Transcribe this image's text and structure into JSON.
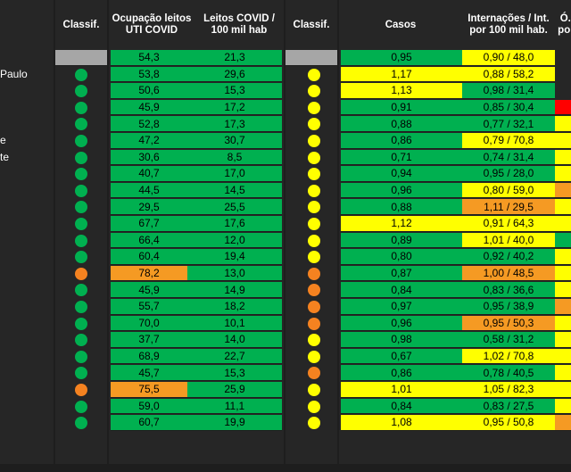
{
  "headers": {
    "classif1": "Classif.",
    "ocupacao": "Ocupação leitos UTI COVID",
    "leitos": "Leitos COVID / 100 mil hab",
    "classif2": "Classif.",
    "casos": "Casos",
    "internacoes": "Internações / Int. por 100 mil hab.",
    "obitos": "Ó... po..."
  },
  "colors": {
    "green": "#00b050",
    "yellow": "#ffff00",
    "orange": "#f59a23",
    "red": "#ff0000",
    "gray": "#a6a6a6"
  },
  "rows": [
    {
      "name": "",
      "class1": "none",
      "ocup": "54,3",
      "ocup_color": "g",
      "leitos": "21,3",
      "class2": "none",
      "casos": "0,95",
      "casos_color": "g",
      "int": "0,90 / 48,0",
      "int_color": "y",
      "edge": "none",
      "header_row": true
    },
    {
      "name": "Paulo",
      "class1": "green",
      "ocup": "53,8",
      "ocup_color": "g",
      "leitos": "29,6",
      "class2": "yellow",
      "casos": "1,17",
      "casos_color": "y",
      "int": "0,88 / 58,2",
      "int_color": "y",
      "edge": "none"
    },
    {
      "name": "",
      "class1": "green",
      "ocup": "50,6",
      "ocup_color": "g",
      "leitos": "15,3",
      "class2": "yellow",
      "casos": "1,13",
      "casos_color": "y",
      "int": "0,98 / 31,4",
      "int_color": "g",
      "edge": "none"
    },
    {
      "name": "",
      "class1": "green",
      "ocup": "45,9",
      "ocup_color": "g",
      "leitos": "17,2",
      "class2": "yellow",
      "casos": "0,91",
      "casos_color": "g",
      "int": "0,85 / 30,4",
      "int_color": "g",
      "edge": "red"
    },
    {
      "name": "",
      "class1": "green",
      "ocup": "52,8",
      "ocup_color": "g",
      "leitos": "17,3",
      "class2": "yellow",
      "casos": "0,88",
      "casos_color": "g",
      "int": "0,77 / 32,1",
      "int_color": "g",
      "edge": "yellow"
    },
    {
      "name": "e",
      "class1": "green",
      "ocup": "47,2",
      "ocup_color": "g",
      "leitos": "30,7",
      "class2": "yellow",
      "casos": "0,86",
      "casos_color": "g",
      "int": "0,79 / 70,8",
      "int_color": "y",
      "edge": "yellow"
    },
    {
      "name": "te",
      "class1": "green",
      "ocup": "30,6",
      "ocup_color": "g",
      "leitos": "8,5",
      "class2": "yellow",
      "casos": "0,71",
      "casos_color": "g",
      "int": "0,74 / 31,4",
      "int_color": "g",
      "edge": "yellow"
    },
    {
      "name": "",
      "class1": "green",
      "ocup": "40,7",
      "ocup_color": "g",
      "leitos": "17,0",
      "class2": "yellow",
      "casos": "0,94",
      "casos_color": "g",
      "int": "0,95 / 28,0",
      "int_color": "g",
      "edge": "yellow"
    },
    {
      "name": "",
      "class1": "green",
      "ocup": "44,5",
      "ocup_color": "g",
      "leitos": "14,5",
      "class2": "yellow",
      "casos": "0,96",
      "casos_color": "g",
      "int": "0,80 / 59,0",
      "int_color": "y",
      "edge": "orange"
    },
    {
      "name": "",
      "class1": "green",
      "ocup": "29,5",
      "ocup_color": "g",
      "leitos": "25,5",
      "class2": "yellow",
      "casos": "0,88",
      "casos_color": "g",
      "int": "1,11 / 29,5",
      "int_color": "o",
      "edge": "yellow"
    },
    {
      "name": "",
      "class1": "green",
      "ocup": "67,7",
      "ocup_color": "g",
      "leitos": "17,6",
      "class2": "yellow",
      "casos": "1,12",
      "casos_color": "y",
      "int": "0,91 / 64,3",
      "int_color": "y",
      "edge": "yellow"
    },
    {
      "name": "",
      "class1": "green",
      "ocup": "66,4",
      "ocup_color": "g",
      "leitos": "12,0",
      "class2": "yellow",
      "casos": "0,89",
      "casos_color": "g",
      "int": "1,01 / 40,0",
      "int_color": "y",
      "edge": "green"
    },
    {
      "name": "",
      "class1": "green",
      "ocup": "60,4",
      "ocup_color": "g",
      "leitos": "19,4",
      "class2": "yellow",
      "casos": "0,80",
      "casos_color": "g",
      "int": "0,92 / 40,2",
      "int_color": "g",
      "edge": "yellow"
    },
    {
      "name": "",
      "class1": "orange",
      "ocup": "78,2",
      "ocup_color": "o",
      "leitos": "13,0",
      "class2": "orange",
      "casos": "0,87",
      "casos_color": "g",
      "int": "1,00 / 48,5",
      "int_color": "o",
      "edge": "yellow"
    },
    {
      "name": "",
      "class1": "green",
      "ocup": "45,9",
      "ocup_color": "g",
      "leitos": "14,9",
      "class2": "orange",
      "casos": "0,84",
      "casos_color": "g",
      "int": "0,83 / 36,6",
      "int_color": "g",
      "edge": "yellow"
    },
    {
      "name": "",
      "class1": "green",
      "ocup": "55,7",
      "ocup_color": "g",
      "leitos": "18,2",
      "class2": "orange",
      "casos": "0,97",
      "casos_color": "g",
      "int": "0,95 / 38,9",
      "int_color": "g",
      "edge": "orange"
    },
    {
      "name": "",
      "class1": "green",
      "ocup": "70,0",
      "ocup_color": "g",
      "leitos": "10,1",
      "class2": "orange",
      "casos": "0,96",
      "casos_color": "g",
      "int": "0,95 / 50,3",
      "int_color": "o",
      "edge": "yellow"
    },
    {
      "name": "",
      "class1": "green",
      "ocup": "37,7",
      "ocup_color": "g",
      "leitos": "14,0",
      "class2": "yellow",
      "casos": "0,98",
      "casos_color": "g",
      "int": "0,58 / 31,2",
      "int_color": "g",
      "edge": "yellow"
    },
    {
      "name": "",
      "class1": "green",
      "ocup": "68,9",
      "ocup_color": "g",
      "leitos": "22,7",
      "class2": "yellow",
      "casos": "0,67",
      "casos_color": "g",
      "int": "1,02 / 70,8",
      "int_color": "y",
      "edge": "yellow"
    },
    {
      "name": "",
      "class1": "green",
      "ocup": "45,7",
      "ocup_color": "g",
      "leitos": "15,3",
      "class2": "orange",
      "casos": "0,86",
      "casos_color": "g",
      "int": "0,78 / 40,5",
      "int_color": "g",
      "edge": "yellow"
    },
    {
      "name": "",
      "class1": "orange",
      "ocup": "75,5",
      "ocup_color": "o",
      "leitos": "25,9",
      "class2": "yellow",
      "casos": "1,01",
      "casos_color": "y",
      "int": "1,05 / 82,3",
      "int_color": "y",
      "edge": "yellow"
    },
    {
      "name": "",
      "class1": "green",
      "ocup": "59,0",
      "ocup_color": "g",
      "leitos": "11,1",
      "class2": "yellow",
      "casos": "0,84",
      "casos_color": "g",
      "int": "0,83 / 27,5",
      "int_color": "g",
      "edge": "yellow"
    },
    {
      "name": "",
      "class1": "green",
      "ocup": "60,7",
      "ocup_color": "g",
      "leitos": "19,9",
      "class2": "yellow",
      "casos": "1,08",
      "casos_color": "y",
      "int": "0,95 / 50,8",
      "int_color": "y",
      "edge": "orange"
    }
  ]
}
